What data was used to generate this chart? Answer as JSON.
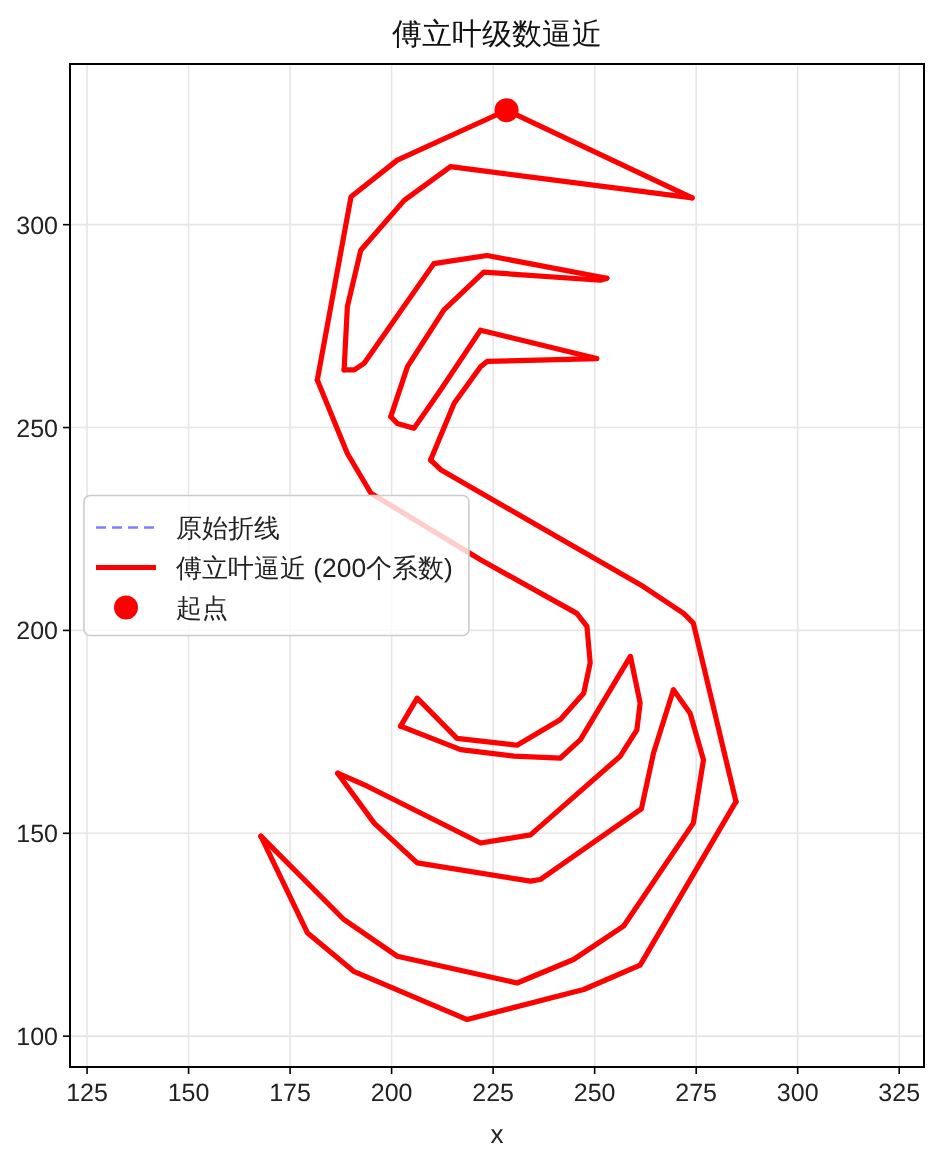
{
  "chart_data": {
    "type": "line",
    "title": "傅立叶级数逼近",
    "xlabel": "x",
    "xlim": [
      120.8,
      331.1
    ],
    "ylim": [
      92.4,
      339.6
    ],
    "xticks": [
      125,
      150,
      175,
      200,
      225,
      250,
      275,
      300,
      325
    ],
    "yticks": [
      100,
      150,
      200,
      250,
      300
    ],
    "grid": true,
    "legend": "left",
    "line_style": "solid",
    "series": [
      {
        "name": "原始折线",
        "type": "line",
        "color": "#8080ff",
        "line_style": "dashed"
      },
      {
        "name": "傅立叶逼近 (200个系数)",
        "type": "line",
        "color": "#ff0000",
        "x": [
          228.3,
          274.0
        ],
        "values": [
          328.2,
          306.6
        ]
      },
      {
        "color": "#ff0000",
        "x": [
          274.0,
          214.5,
          203.1,
          192.4,
          189.1,
          188.3
        ],
        "values": [
          306.6,
          314.3,
          306.0,
          293.7,
          279.8,
          264.2
        ]
      },
      {
        "color": "#ff0000",
        "x": [
          188.3,
          190.8,
          193.2,
          210.4,
          223.5,
          253.0
        ],
        "values": [
          264.2,
          264.2,
          265.8,
          290.4,
          292.4,
          286.8
        ]
      },
      {
        "color": "#ff0000",
        "x": [
          253.0,
          251.4,
          222.7,
          212.9,
          203.9,
          199.8
        ],
        "values": [
          286.8,
          286.3,
          288.3,
          279.0,
          265.0,
          252.7
        ]
      },
      {
        "color": "#ff0000",
        "x": [
          199.8,
          201.4,
          205.5,
          212.1,
          221.9,
          250.5
        ],
        "values": [
          252.7,
          251.0,
          249.8,
          259.3,
          274.0,
          267.0
        ]
      },
      {
        "color": "#ff0000",
        "x": [
          250.5,
          223.5,
          221.9,
          215.4,
          209.6
        ],
        "values": [
          267.0,
          266.3,
          265.0,
          256.0,
          242.0
        ]
      },
      {
        "color": "#ff0000",
        "x": [
          209.6,
          212.1,
          262.0,
          271.9,
          274.3,
          284.8
        ],
        "values": [
          242.0,
          239.6,
          210.8,
          204.2,
          201.8,
          157.8
        ]
      },
      {
        "color": "#ff0000",
        "x": [
          284.8,
          261.2,
          247.3,
          218.6,
          190.8,
          179.3,
          167.8
        ],
        "values": [
          157.8,
          117.5,
          111.5,
          104.1,
          115.9,
          125.4,
          149.3
        ]
      },
      {
        "color": "#ff0000",
        "x": [
          167.8,
          188.3,
          201.4,
          230.9,
          244.8,
          257.1,
          274.3,
          276.8,
          273.5,
          269.4,
          264.5,
          261.5,
          236.6,
          234.2,
          206.3,
          195.7,
          186.7
        ],
        "values": [
          149.3,
          128.7,
          119.7,
          113.1,
          118.9,
          127.1,
          152.5,
          168.1,
          179.6,
          185.4,
          169.8,
          156.0,
          138.6,
          138.2,
          142.7,
          152.5,
          164.8
        ]
      },
      {
        "color": "#ff0000",
        "x": [
          186.7,
          194.0,
          221.9,
          234.2,
          256.3,
          260.4,
          261.2,
          258.8,
          246.5,
          241.5,
          230.1,
          217.0,
          202.2
        ],
        "values": [
          164.8,
          161.6,
          147.6,
          149.6,
          169.0,
          175.5,
          182.1,
          193.6,
          173.1,
          168.5,
          169.0,
          170.6,
          176.4
        ]
      },
      {
        "color": "#ff0000",
        "x": [
          202.2,
          206.3,
          216.1,
          230.9,
          241.5,
          247.3,
          248.9,
          248.1,
          245.6,
          221.9,
          194.9,
          189.1,
          181.7
        ],
        "values": [
          176.4,
          183.3,
          173.4,
          171.7,
          178.0,
          184.5,
          192.0,
          201.0,
          204.2,
          217.4,
          233.8,
          243.6,
          261.7
        ]
      },
      {
        "color": "#ff0000",
        "x": [
          181.7,
          190.0,
          201.4,
          228.3
        ],
        "values": [
          261.7,
          306.9,
          315.9,
          328.2
        ]
      },
      {
        "name": "起点",
        "type": "scatter",
        "color": "#ff0000",
        "marker": "circle",
        "x": [
          228.3
        ],
        "values": [
          328.2
        ]
      }
    ]
  }
}
